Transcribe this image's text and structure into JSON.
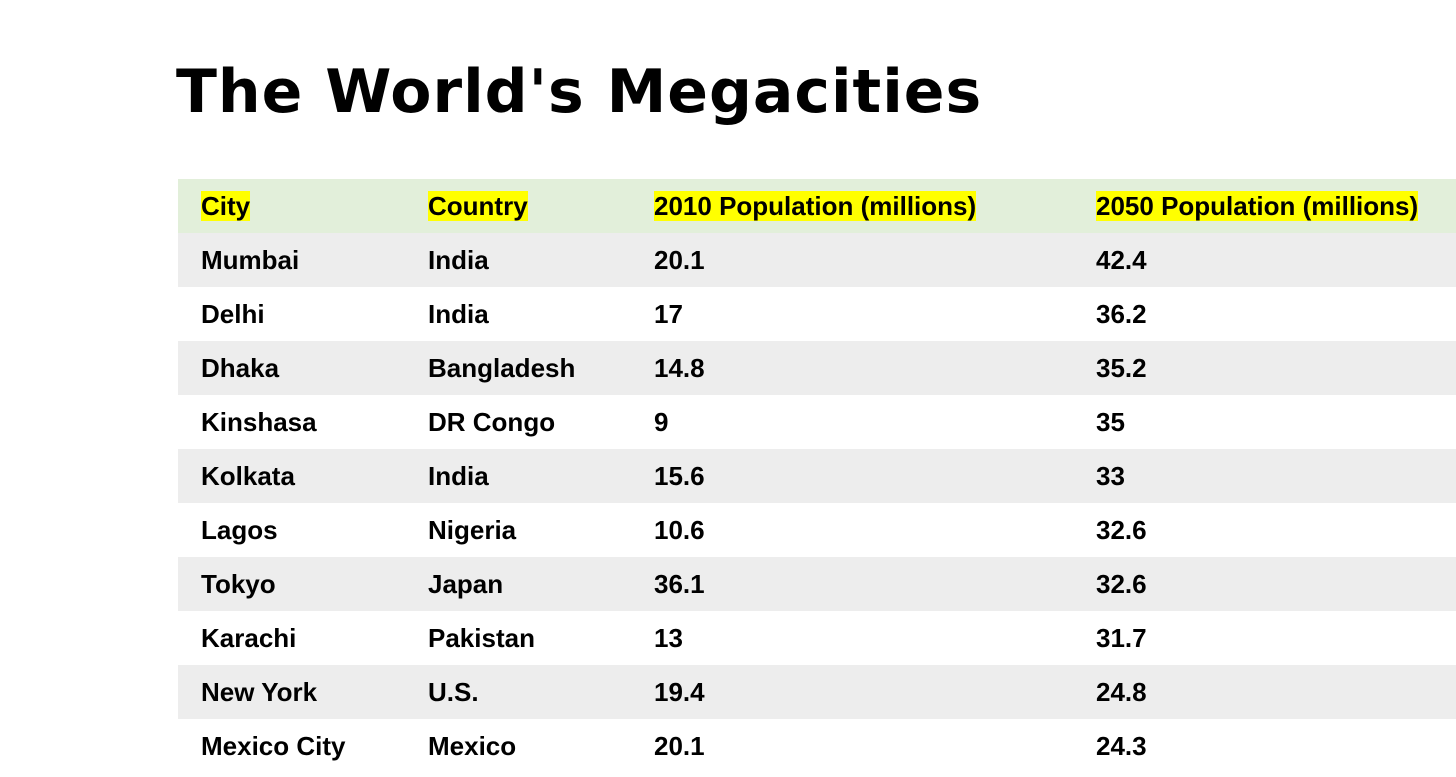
{
  "page": {
    "title": "The World's Megacities"
  },
  "table": {
    "columns": [
      "City",
      "Country",
      "2010 Population (millions)",
      "2050 Population (millions)"
    ],
    "rows": [
      [
        "Mumbai",
        "India",
        "20.1",
        "42.4"
      ],
      [
        "Delhi",
        "India",
        "17",
        "36.2"
      ],
      [
        "Dhaka",
        "Bangladesh",
        "14.8",
        "35.2"
      ],
      [
        "Kinshasa",
        "DR Congo",
        "9",
        "35"
      ],
      [
        "Kolkata",
        "India",
        "15.6",
        "33"
      ],
      [
        "Lagos",
        "Nigeria",
        "10.6",
        "32.6"
      ],
      [
        "Tokyo",
        "Japan",
        "36.1",
        "32.6"
      ],
      [
        "Karachi",
        "Pakistan",
        "13",
        "31.7"
      ],
      [
        "New York",
        "U.S.",
        "19.4",
        "24.8"
      ],
      [
        "Mexico City",
        "Mexico",
        "20.1",
        "24.3"
      ]
    ]
  },
  "colors": {
    "header_background": "#e2efda",
    "header_highlight": "#ffff00",
    "row_stripe": "#ededed",
    "row_plain": "#ffffff",
    "text": "#000000"
  }
}
